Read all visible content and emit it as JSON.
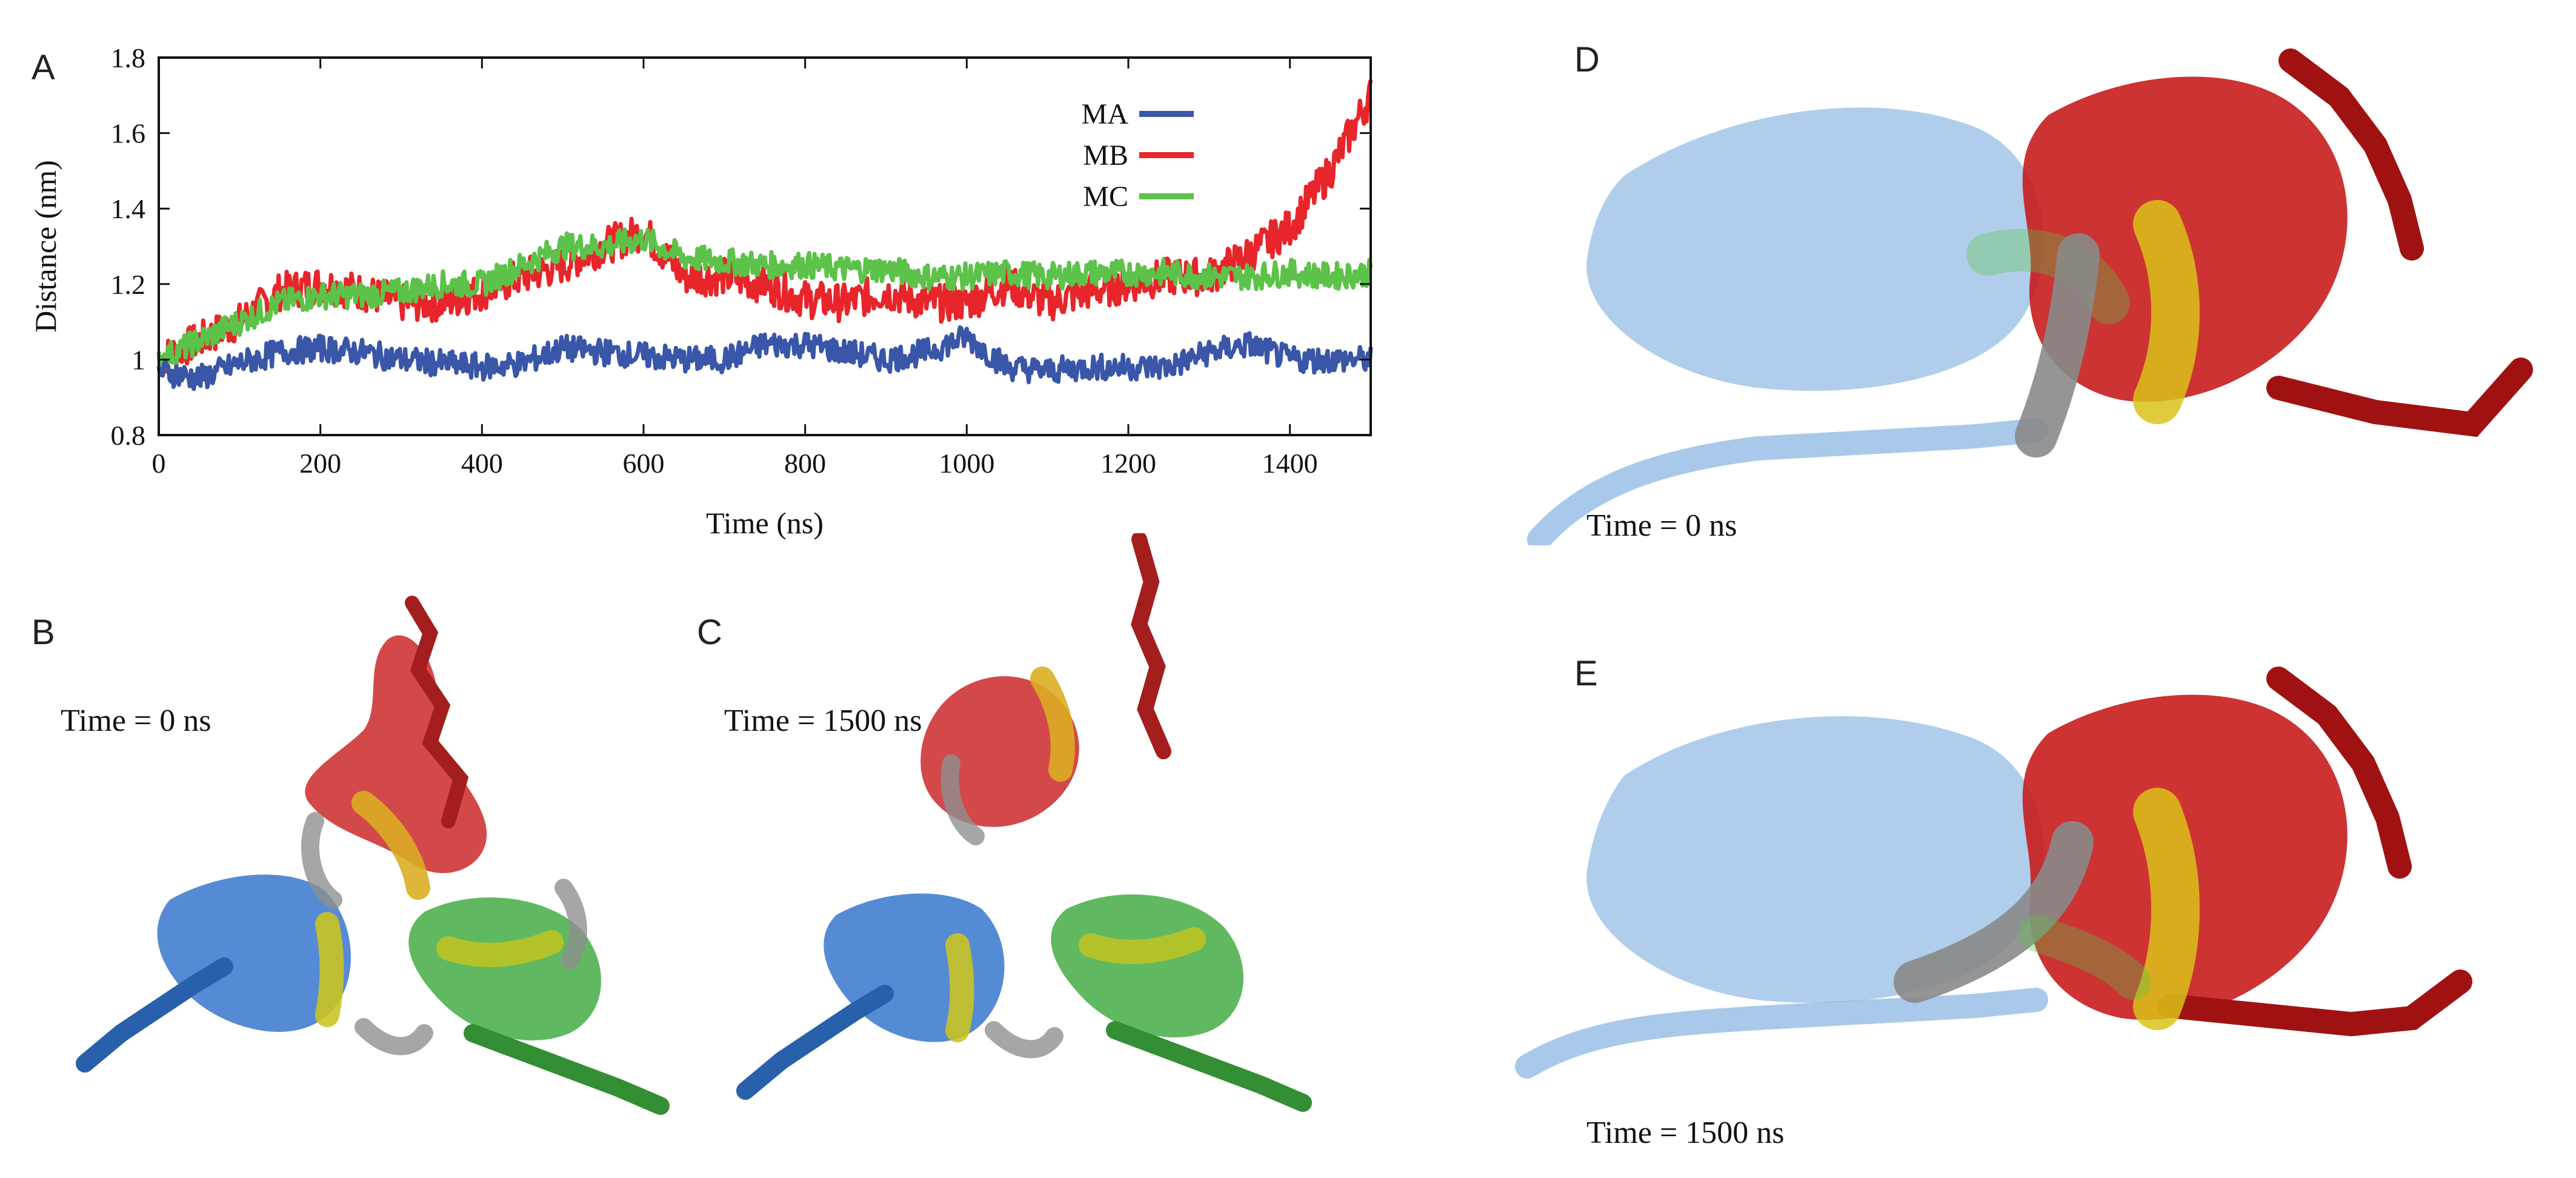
{
  "panels": {
    "a": "A",
    "b": "B",
    "c": "C",
    "d": "D",
    "e": "E"
  },
  "snapshots": {
    "b_label": "Time = 0 ns",
    "c_label": "Time = 1500 ns",
    "d_label": "Time = 0 ns",
    "e_label": "Time = 1500 ns"
  },
  "colors": {
    "MA": "#3a56a8",
    "MB": "#e8252a",
    "MC": "#5cc249",
    "blue_protein": "#2b6fc9",
    "red_protein": "#c81d1d",
    "green_protein": "#3aa83a",
    "ligand_yellow": "#d9c21a",
    "ligand_grey": "#8a8a8a"
  },
  "chart_data": {
    "type": "line",
    "xlabel": "Time (ns)",
    "ylabel": "Distance (nm)",
    "xlim": [
      0,
      1500
    ],
    "ylim": [
      0.8,
      1.8
    ],
    "xticks": [
      "0",
      "200",
      "400",
      "600",
      "800",
      "1000",
      "1200",
      "1400"
    ],
    "yticks": [
      "0.8",
      "1",
      "1.2",
      "1.4",
      "1.6",
      "1.8"
    ],
    "legend_position": "top-right",
    "grid": false,
    "series": [
      {
        "name": "MA",
        "x": [
          0,
          50,
          100,
          150,
          200,
          250,
          300,
          350,
          400,
          450,
          500,
          550,
          600,
          650,
          700,
          750,
          800,
          850,
          900,
          950,
          1000,
          1050,
          1100,
          1150,
          1200,
          1250,
          1300,
          1350,
          1400,
          1450,
          1500
        ],
        "values": [
          0.97,
          0.95,
          0.99,
          1.02,
          1.03,
          1.02,
          1.0,
          0.99,
          0.98,
          0.99,
          1.03,
          1.02,
          1.01,
          1.0,
          1.0,
          1.04,
          1.04,
          1.02,
          1.0,
          1.02,
          1.06,
          0.98,
          0.97,
          0.98,
          0.98,
          0.98,
          1.02,
          1.04,
          1.0,
          1.0,
          1.0
        ]
      },
      {
        "name": "MB",
        "x": [
          0,
          50,
          100,
          150,
          200,
          250,
          300,
          350,
          400,
          450,
          500,
          550,
          600,
          650,
          700,
          750,
          800,
          850,
          900,
          950,
          1000,
          1050,
          1100,
          1150,
          1200,
          1250,
          1300,
          1350,
          1400,
          1450,
          1500
        ],
        "values": [
          1.0,
          1.05,
          1.1,
          1.18,
          1.2,
          1.18,
          1.15,
          1.15,
          1.18,
          1.22,
          1.25,
          1.3,
          1.34,
          1.22,
          1.22,
          1.2,
          1.16,
          1.15,
          1.18,
          1.15,
          1.15,
          1.2,
          1.15,
          1.18,
          1.2,
          1.22,
          1.22,
          1.28,
          1.35,
          1.5,
          1.7
        ]
      },
      {
        "name": "MC",
        "x": [
          0,
          50,
          100,
          150,
          200,
          250,
          300,
          350,
          400,
          450,
          500,
          550,
          600,
          650,
          700,
          750,
          800,
          850,
          900,
          950,
          1000,
          1050,
          1100,
          1150,
          1200,
          1250,
          1300,
          1350,
          1400,
          1450,
          1500
        ],
        "values": [
          1.0,
          1.05,
          1.1,
          1.15,
          1.17,
          1.17,
          1.18,
          1.2,
          1.2,
          1.25,
          1.3,
          1.3,
          1.32,
          1.27,
          1.26,
          1.25,
          1.25,
          1.24,
          1.24,
          1.22,
          1.22,
          1.23,
          1.22,
          1.23,
          1.23,
          1.23,
          1.22,
          1.22,
          1.23,
          1.22,
          1.23
        ]
      }
    ]
  }
}
